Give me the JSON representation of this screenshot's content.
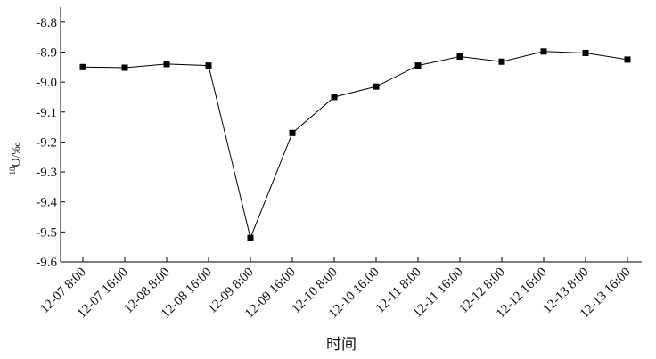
{
  "chart_data": {
    "type": "line",
    "xlabel": "时间",
    "ylabel_sup": "18",
    "ylabel_main": "O/‰",
    "categories": [
      "12-07 8:00",
      "12-07 16:00",
      "12-08 8:00",
      "12-08 16:00",
      "12-09 8:00",
      "12-09 16:00",
      "12-10 8:00",
      "12-10 16:00",
      "12-11 8:00",
      "12-11 16:00",
      "12-12 8:00",
      "12-12 16:00",
      "12-13 8:00",
      "12-13 16:00"
    ],
    "values": [
      -8.95,
      -8.952,
      -8.94,
      -8.945,
      -9.52,
      -9.17,
      -9.05,
      -9.015,
      -8.945,
      -8.915,
      -8.932,
      -8.898,
      -8.903,
      -8.925
    ],
    "ylim": [
      -9.6,
      -8.75
    ],
    "yticks": [
      -9.6,
      -9.5,
      -9.4,
      -9.3,
      -9.2,
      -9.1,
      -9.0,
      -8.9,
      -8.8
    ],
    "ytick_labels": [
      "-9.6",
      "-9.5",
      "-9.4",
      "-9.3",
      "-9.2",
      "-9.1",
      "-9.0",
      "-8.9",
      "-8.8"
    ],
    "marker": "square",
    "line_color": "#000000",
    "grid": false
  }
}
